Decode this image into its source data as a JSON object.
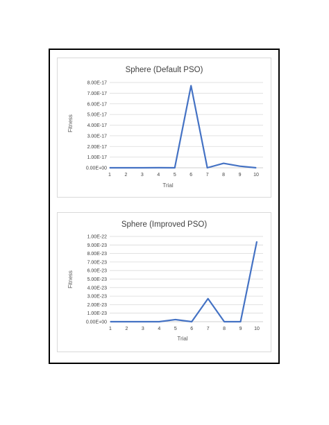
{
  "chart_data": [
    {
      "type": "line",
      "title": "Sphere (Default PSO)",
      "xlabel": "Trial",
      "ylabel": "Fitness",
      "categories": [
        "1",
        "2",
        "3",
        "4",
        "5",
        "6",
        "7",
        "8",
        "9",
        "10"
      ],
      "y_ticks": [
        "0.00E+00",
        "1.00E-17",
        "2.00E-17",
        "3.00E-17",
        "4.00E-17",
        "5.00E-17",
        "6.00E-17",
        "7.00E-17",
        "8.00E-17"
      ],
      "ylim": [
        0,
        8e-17
      ],
      "series": [
        {
          "values": [
            0,
            0,
            0,
            1e-19,
            0,
            7.7e-17,
            0,
            4.2e-18,
            1.5e-18,
            0
          ]
        }
      ],
      "grid": true,
      "color": "#4472c4"
    },
    {
      "type": "line",
      "title": "Sphere (Improved PSO)",
      "xlabel": "Trial",
      "ylabel": "Fitness",
      "categories": [
        "1",
        "2",
        "3",
        "4",
        "5",
        "6",
        "7",
        "8",
        "9",
        "10"
      ],
      "y_ticks": [
        "0.00E+00",
        "1.00E-23",
        "2.00E-23",
        "3.00E-23",
        "4.00E-23",
        "5.00E-23",
        "6.00E-23",
        "7.00E-23",
        "8.00E-23",
        "9.00E-23",
        "1.00E-22"
      ],
      "ylim": [
        0,
        1e-22
      ],
      "series": [
        {
          "values": [
            0,
            0,
            0,
            0,
            2.5e-24,
            0,
            2.7e-23,
            0,
            0,
            9.4e-23
          ]
        }
      ],
      "grid": true,
      "color": "#4472c4"
    }
  ]
}
